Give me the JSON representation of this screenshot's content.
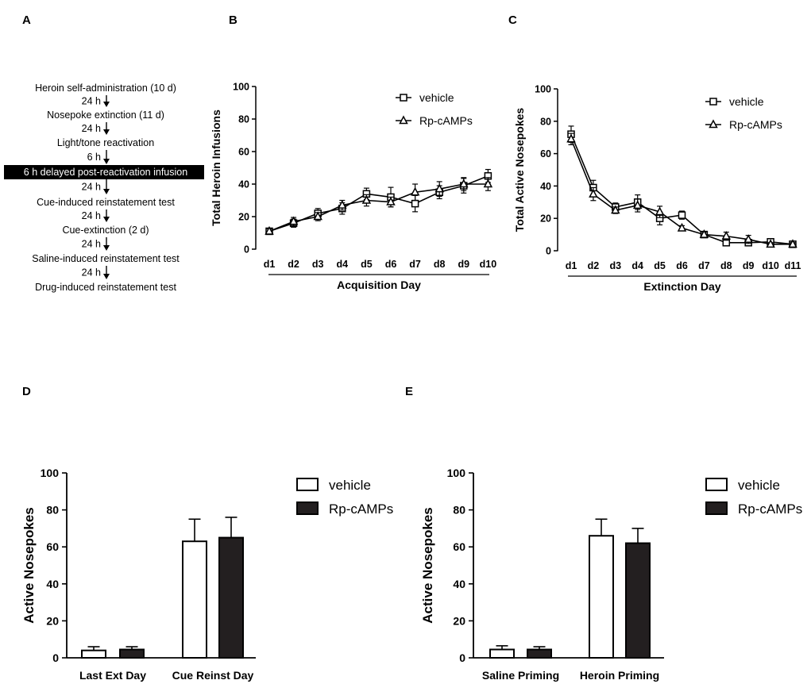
{
  "panels": {
    "a": {
      "letter": "A",
      "steps": [
        "Heroin self-administration (10 d)",
        "Nosepoke extinction (11 d)",
        "Light/tone reactivation",
        "6 h delayed  post-reactivation  infusion",
        "Cue-induced reinstatement test",
        "Cue-extinction (2 d)",
        "Saline-induced reinstatement test",
        "Drug-induced reinstatement test"
      ],
      "intervals": [
        "24 h",
        "24 h",
        "6 h",
        "24 h",
        "24 h",
        "24 h",
        "24 h"
      ]
    },
    "b": {
      "letter": "B"
    },
    "c": {
      "letter": "C"
    },
    "d": {
      "letter": "D"
    },
    "e": {
      "letter": "E"
    }
  },
  "colors": {
    "ink": "#000000",
    "bar_dark": "#231f20",
    "bar_light": "#ffffff",
    "highlight_bg": "#000000",
    "highlight_text": "#ffffff"
  },
  "chart_data": [
    {
      "id": "B",
      "type": "line",
      "categories": [
        "d1",
        "d2",
        "d3",
        "d4",
        "d5",
        "d6",
        "d7",
        "d8",
        "d9",
        "d10"
      ],
      "xlabel": "Acquisition Day",
      "ylabel": "Total Heroin Infusions",
      "ylim": [
        0,
        100
      ],
      "yticks": [
        0,
        20,
        40,
        60,
        80,
        100
      ],
      "legend": "top-right",
      "series": [
        {
          "name": "vehicle",
          "marker": "square",
          "values": [
            11,
            16,
            22,
            25,
            34,
            32,
            28,
            35,
            39,
            45
          ],
          "errors": [
            1.5,
            2.5,
            3,
            3.5,
            3.5,
            6,
            5,
            4,
            4.5,
            4
          ]
        },
        {
          "name": "Rp-cAMPs",
          "marker": "triangle",
          "values": [
            11,
            17,
            20,
            27,
            30,
            29,
            35,
            37,
            40,
            40
          ],
          "errors": [
            1.5,
            2.5,
            2.5,
            3,
            3.5,
            3,
            5,
            4.5,
            4,
            4
          ]
        }
      ]
    },
    {
      "id": "C",
      "type": "line",
      "categories": [
        "d1",
        "d2",
        "d3",
        "d4",
        "d5",
        "d6",
        "d7",
        "d8",
        "d9",
        "d10",
        "d11"
      ],
      "xlabel": "Extinction Day",
      "ylabel": "Total Active Nosepokes",
      "ylim": [
        0,
        100
      ],
      "yticks": [
        0,
        20,
        40,
        60,
        80,
        100
      ],
      "legend": "top-right",
      "series": [
        {
          "name": "vehicle",
          "marker": "square",
          "values": [
            72,
            39,
            27,
            30,
            20,
            22,
            10,
            5,
            5,
            5.5,
            4
          ],
          "errors": [
            5,
            4.5,
            2.5,
            4.5,
            4,
            2.5,
            1.5,
            1.5,
            2,
            1.5,
            1
          ]
        },
        {
          "name": "Rp-cAMPs",
          "marker": "triangle",
          "values": [
            69,
            35,
            25,
            28,
            24,
            14,
            10,
            9,
            7,
            4,
            4
          ],
          "errors": [
            3.5,
            4,
            2,
            4,
            3.5,
            1.5,
            1.5,
            2.5,
            2.5,
            1,
            1
          ]
        }
      ]
    },
    {
      "id": "D",
      "type": "bar",
      "categories": [
        "Last Ext Day",
        "Cue Reinst Day"
      ],
      "ylabel": "Active Nosepokes",
      "ylim": [
        0,
        100
      ],
      "yticks": [
        0,
        20,
        40,
        60,
        80,
        100
      ],
      "legend": "top-right",
      "series": [
        {
          "name": "vehicle",
          "fill": "light",
          "values": [
            4,
            63
          ],
          "errors": [
            2,
            12
          ]
        },
        {
          "name": "Rp-cAMPs",
          "fill": "dark",
          "values": [
            4.5,
            65
          ],
          "errors": [
            1.5,
            11
          ]
        }
      ]
    },
    {
      "id": "E",
      "type": "bar",
      "categories": [
        "Saline Priming",
        "Heroin Priming"
      ],
      "ylabel": "Active Nosepokes",
      "ylim": [
        0,
        100
      ],
      "yticks": [
        0,
        20,
        40,
        60,
        80,
        100
      ],
      "legend": "top-right",
      "series": [
        {
          "name": "vehicle",
          "fill": "light",
          "values": [
            4.5,
            66
          ],
          "errors": [
            2,
            9
          ]
        },
        {
          "name": "Rp-cAMPs",
          "fill": "dark",
          "values": [
            4.5,
            62
          ],
          "errors": [
            1.5,
            8
          ]
        }
      ]
    }
  ]
}
